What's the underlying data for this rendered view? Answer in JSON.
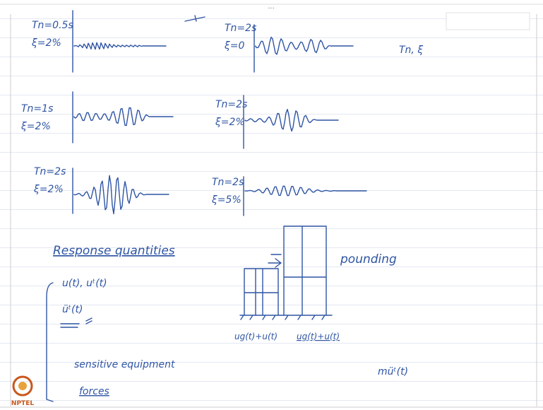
{
  "header": {
    "menu": "..."
  },
  "plots": [
    {
      "period": "Tn=0.5s",
      "damping": "ξ=2%"
    },
    {
      "period": "Tn=2s",
      "damping": "ξ=0"
    },
    {
      "period": "Tn=1s",
      "damping": "ξ=2%"
    },
    {
      "period": "Tn=2s",
      "damping": "ξ=2%"
    },
    {
      "period": "Tn=2s",
      "damping": "ξ=2%"
    },
    {
      "period": "Tn=2s",
      "damping": "ξ=5%"
    }
  ],
  "side_note": "Tn, ξ",
  "notes": {
    "heading": "Response quantities",
    "items": [
      "u(t), uᵗ(t)",
      "üᵗ(t)",
      "sensitive equipment",
      "forces"
    ]
  },
  "diagram": {
    "label": "pounding",
    "left_label": "ug(t)+u(t)",
    "right_label": "ug(t)+u(t)"
  },
  "formula": "müᵗ(t)",
  "logo": "NPTEL"
}
